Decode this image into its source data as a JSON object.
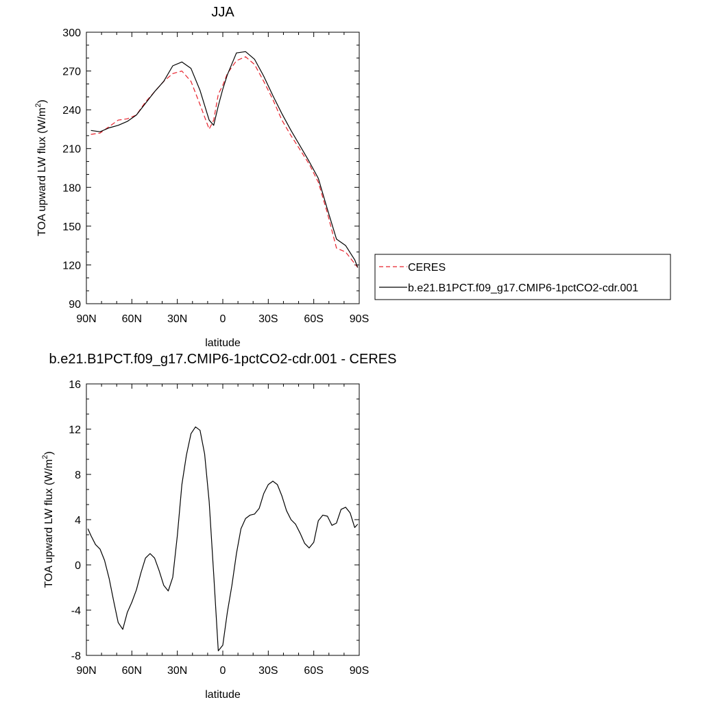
{
  "chart_data": [
    {
      "type": "line",
      "title": "JJA",
      "xlabel": "latitude",
      "ylabel": "TOA upward LW flux (W/m",
      "ylabel_sup": "2",
      "ylabel_end": ")",
      "xlim": [
        90,
        -90
      ],
      "ylim": [
        90,
        300
      ],
      "x_ticks": [
        90,
        60,
        30,
        0,
        -30,
        -60,
        -90
      ],
      "x_tick_labels": [
        "90N",
        "60N",
        "30N",
        "0",
        "30S",
        "60S",
        "90S"
      ],
      "y_ticks": [
        90,
        120,
        150,
        180,
        210,
        240,
        270,
        300
      ],
      "y_tick_labels": [
        "90",
        "120",
        "150",
        "180",
        "210",
        "240",
        "270",
        "300"
      ],
      "legend_position": "right",
      "series": [
        {
          "name": "CERES",
          "color": "#e8202a",
          "dash": "dashed",
          "x": [
            87,
            81,
            75,
            69,
            63,
            57,
            51,
            45,
            39,
            33,
            27,
            21,
            15,
            9,
            6,
            3,
            0,
            -3,
            -9,
            -15,
            -21,
            -27,
            -33,
            -39,
            -45,
            -51,
            -57,
            -63,
            -69,
            -75,
            -81,
            -87,
            -89
          ],
          "y": [
            221,
            222,
            227,
            232,
            233,
            236,
            246,
            254,
            262,
            268,
            270,
            262,
            244,
            225,
            232,
            252,
            259,
            268,
            278,
            281,
            275,
            262,
            248,
            232,
            220,
            209,
            198,
            184,
            160,
            133,
            130,
            121,
            118
          ]
        },
        {
          "name": "b.e21.B1PCT.f09_g17.CMIP6-1pctCO2-cdr.001",
          "color": "#000000",
          "dash": "solid",
          "x": [
            87,
            81,
            75,
            69,
            63,
            57,
            51,
            45,
            39,
            33,
            27,
            21,
            15,
            9,
            6,
            3,
            0,
            -3,
            -9,
            -15,
            -21,
            -27,
            -33,
            -39,
            -45,
            -51,
            -57,
            -63,
            -69,
            -75,
            -81,
            -87,
            -89
          ],
          "y": [
            224,
            223,
            226,
            228,
            231,
            236,
            245,
            254,
            262,
            274,
            277,
            272,
            255,
            232,
            228,
            243,
            256,
            267,
            284,
            285,
            279,
            266,
            251,
            237,
            224,
            212,
            200,
            187,
            163,
            140,
            135,
            124,
            118
          ]
        }
      ]
    },
    {
      "type": "line",
      "title": "b.e21.B1PCT.f09_g17.CMIP6-1pctCO2-cdr.001 - CERES",
      "xlabel": "latitude",
      "ylabel": "TOA upward LW flux (W/m",
      "ylabel_sup": "2",
      "ylabel_end": ")",
      "xlim": [
        90,
        -90
      ],
      "ylim": [
        -8,
        16
      ],
      "x_ticks": [
        90,
        60,
        30,
        0,
        -30,
        -60,
        -90
      ],
      "x_tick_labels": [
        "90N",
        "60N",
        "30N",
        "0",
        "30S",
        "60S",
        "90S"
      ],
      "y_ticks": [
        -8,
        -4,
        0,
        4,
        8,
        12,
        16
      ],
      "y_tick_labels": [
        "-8",
        "-4",
        "0",
        "4",
        "8",
        "12",
        "16"
      ],
      "series": [
        {
          "color": "#000000",
          "dash": "solid",
          "x": [
            89,
            87,
            84,
            81,
            78,
            75,
            72,
            69,
            66,
            63,
            60,
            57,
            54,
            51,
            48,
            45,
            42,
            39,
            36,
            33,
            30,
            27,
            24,
            21,
            18,
            15,
            12,
            9,
            6,
            3,
            0,
            -3,
            -6,
            -9,
            -12,
            -15,
            -18,
            -21,
            -24,
            -27,
            -30,
            -33,
            -36,
            -39,
            -42,
            -45,
            -48,
            -51,
            -54,
            -57,
            -60,
            -63,
            -66,
            -69,
            -72,
            -75,
            -78,
            -81,
            -84,
            -87,
            -89
          ],
          "y": [
            3.2,
            2.6,
            1.8,
            1.4,
            0.4,
            -1.2,
            -3.2,
            -5.1,
            -5.7,
            -4.2,
            -3.3,
            -2.2,
            -0.7,
            0.6,
            1.0,
            0.6,
            -0.5,
            -1.8,
            -2.3,
            -1.1,
            2.6,
            7.1,
            9.7,
            11.6,
            12.2,
            11.9,
            9.8,
            5.6,
            -0.8,
            -7.6,
            -7.1,
            -4.2,
            -1.8,
            1.0,
            3.2,
            4.1,
            4.4,
            4.5,
            5.0,
            6.3,
            7.1,
            7.4,
            7.1,
            6.1,
            4.8,
            4.0,
            3.6,
            2.8,
            1.9,
            1.5,
            2.0,
            3.9,
            4.4,
            4.3,
            3.5,
            3.7,
            4.9,
            5.1,
            4.6,
            3.3,
            3.6
          ]
        }
      ]
    }
  ]
}
